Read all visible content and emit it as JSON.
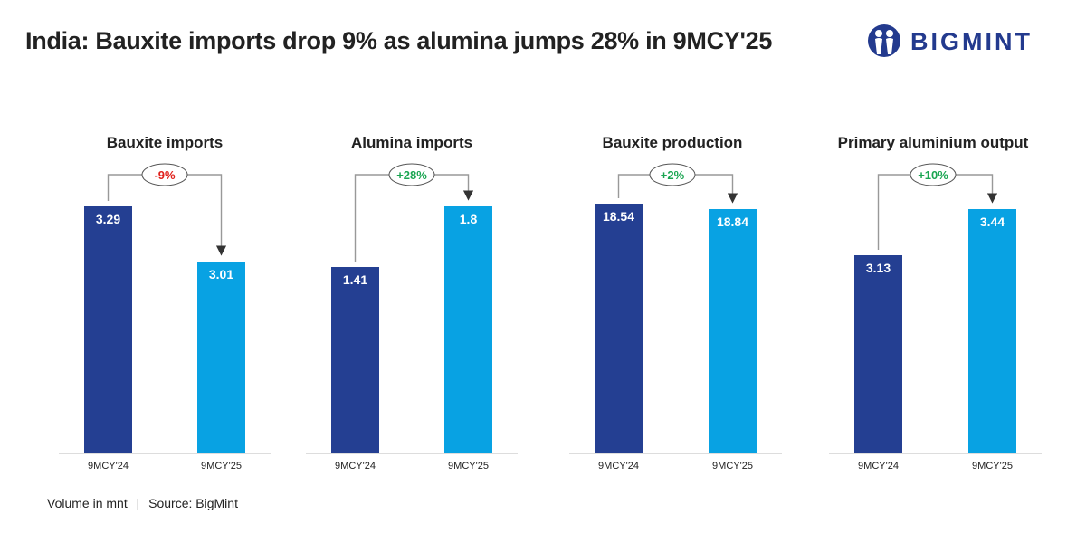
{
  "title": "India: Bauxite imports drop 9% as alumina jumps 28% in 9MCY'25",
  "logo": {
    "text": "BIGMINT",
    "color": "#233a8e"
  },
  "footer": {
    "unit": "Volume in mnt",
    "separator": "|",
    "source": "Source: BigMint"
  },
  "colors": {
    "bar_2024": "#243f92",
    "bar_2025": "#08a2e3",
    "negative": "#e0201b",
    "positive": "#1aa551"
  },
  "chart_data": [
    {
      "type": "bar",
      "title": "Bauxite imports",
      "categories": [
        "9MCY'24",
        "9MCY'25"
      ],
      "values": [
        3.29,
        3.01
      ],
      "value_labels": [
        "3.29",
        "3.01"
      ],
      "change": "-9%",
      "change_sign": "negative"
    },
    {
      "type": "bar",
      "title": "Alumina imports",
      "categories": [
        "9MCY'24",
        "9MCY'25"
      ],
      "values": [
        1.41,
        1.8
      ],
      "value_labels": [
        "1.41",
        "1.8"
      ],
      "change": "+28%",
      "change_sign": "positive"
    },
    {
      "type": "bar",
      "title": "Bauxite production",
      "categories": [
        "9MCY'24",
        "9MCY'25"
      ],
      "values": [
        18.54,
        18.84
      ],
      "value_labels": [
        "18.54",
        "18.84"
      ],
      "change": "+2%",
      "change_sign": "positive"
    },
    {
      "type": "bar",
      "title": "Primary aluminium output",
      "categories": [
        "9MCY'24",
        "9MCY'25"
      ],
      "values": [
        3.13,
        3.44
      ],
      "value_labels": [
        "3.13",
        "3.44"
      ],
      "change": "+10%",
      "change_sign": "positive"
    }
  ]
}
